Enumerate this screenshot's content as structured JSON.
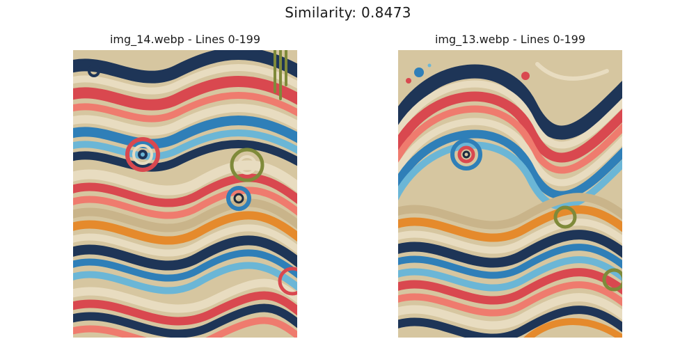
{
  "figure": {
    "title": "Similarity: 0.8473"
  },
  "panels": [
    {
      "title": "img_14.webp - Lines 0-199"
    },
    {
      "title": "img_13.webp - Lines 0-199"
    }
  ],
  "palette": {
    "navy": "#1e3557",
    "blue": "#2f7fb8",
    "sky": "#6bb6d6",
    "red": "#d9484f",
    "coral": "#ef7b6e",
    "cream": "#e8dcc0",
    "tan": "#c9b48a",
    "orange": "#e58a2c",
    "olive": "#7f8a3a",
    "ink": "#1a2a3f"
  }
}
